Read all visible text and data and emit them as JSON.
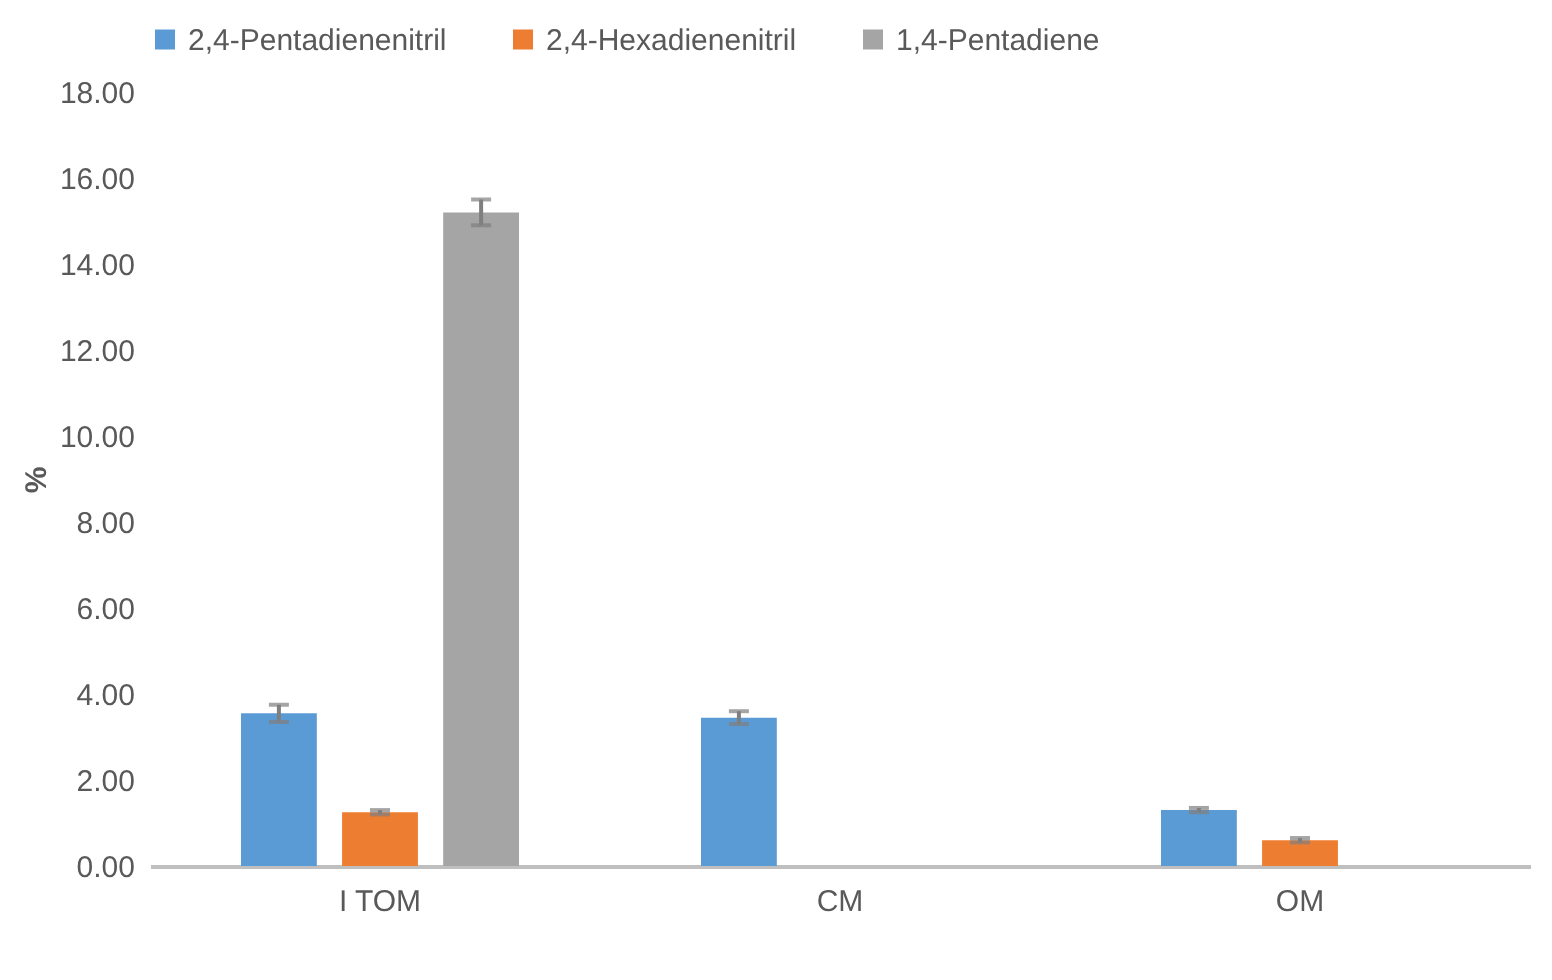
{
  "chart_data": {
    "type": "bar",
    "ylabel": "%",
    "categories": [
      "I  TOM",
      "CM",
      "OM"
    ],
    "series": [
      {
        "name": "2,4-Pentadienenitril",
        "color": "#5b9bd5",
        "values": [
          3.55,
          3.45,
          1.3
        ],
        "errors": [
          0.2,
          0.15,
          0.05
        ]
      },
      {
        "name": "2,4-Hexadienenitril",
        "color": "#ed7d31",
        "values": [
          1.25,
          null,
          0.6
        ],
        "errors": [
          0.05,
          null,
          0.05
        ]
      },
      {
        "name": "1,4-Pentadiene",
        "color": "#a5a5a5",
        "values": [
          15.2,
          null,
          null
        ],
        "errors": [
          0.3,
          null,
          null
        ]
      }
    ],
    "ylim": [
      0,
      18
    ],
    "yticks": [
      {
        "value": 0,
        "label": "0.00"
      },
      {
        "value": 2,
        "label": "2.00"
      },
      {
        "value": 4,
        "label": "4.00"
      },
      {
        "value": 6,
        "label": "6.00"
      },
      {
        "value": 8,
        "label": "8.00"
      },
      {
        "value": 10,
        "label": "10.00"
      },
      {
        "value": 12,
        "label": "12.00"
      },
      {
        "value": 14,
        "label": "14.00"
      },
      {
        "value": 16,
        "label": "16.00"
      },
      {
        "value": 18,
        "label": "18.00"
      }
    ],
    "grid": false,
    "legend": "top"
  }
}
